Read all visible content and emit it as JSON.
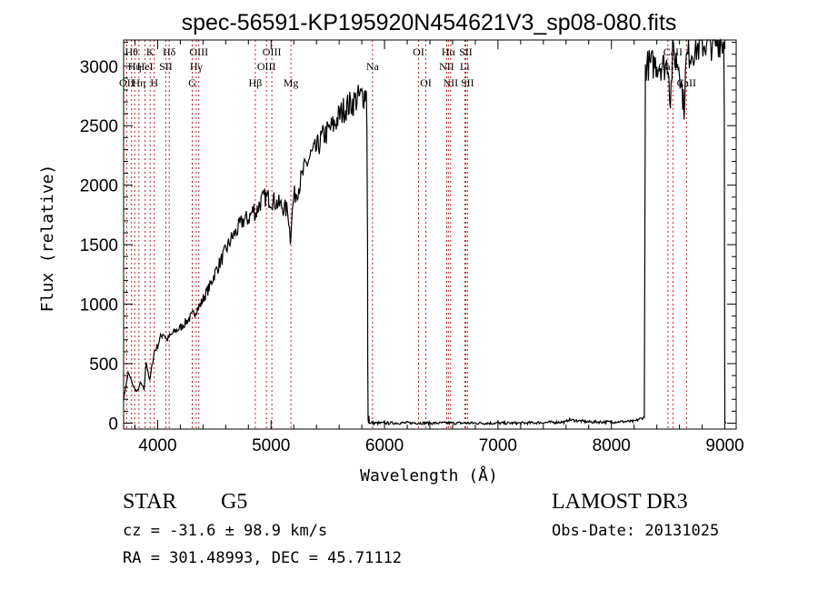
{
  "chart_data": {
    "type": "line",
    "title": "spec-56591-KP195920N454621V3_sp08-080.fits",
    "xlabel": "Wavelength (Å)",
    "ylabel": "Flux (relative)",
    "xlim": [
      3700,
      9100
    ],
    "ylim": [
      -50,
      3220
    ],
    "xticks": [
      4000,
      5000,
      6000,
      7000,
      8000,
      9000
    ],
    "yticks": [
      0,
      500,
      1000,
      1500,
      2000,
      2500,
      3000
    ],
    "grid": false,
    "series": [
      {
        "color": "#000000",
        "x": [
          3700,
          3740,
          3760,
          3790,
          3820,
          3850,
          3880,
          3900,
          3930,
          3950,
          3970,
          4000,
          4020,
          4050,
          4080,
          4100,
          4150,
          4200,
          4250,
          4300,
          4340,
          4380,
          4420,
          4460,
          4500,
          4550,
          4600,
          4650,
          4700,
          4750,
          4800,
          4850,
          4861,
          4900,
          4950,
          5000,
          5050,
          5100,
          5150,
          5170,
          5180,
          5200,
          5250,
          5300,
          5350,
          5400,
          5450,
          5500,
          5550,
          5600,
          5650,
          5700,
          5750,
          5800,
          5840,
          5845,
          5850,
          5852,
          5855,
          5858,
          5860,
          5863,
          5866,
          5870,
          5880,
          5890,
          5900,
          6000,
          6200,
          6400,
          6600,
          6800,
          7000,
          7200,
          7400,
          7600,
          7620,
          7800,
          8000,
          8200,
          8290,
          8295,
          8300,
          8320,
          8400,
          8480,
          8500,
          8520,
          8540,
          8560,
          8600,
          8640,
          8660,
          8680,
          8700,
          8750,
          8800,
          8850,
          8900,
          8950,
          8990,
          8995,
          9000,
          9010
        ],
        "y": [
          200,
          420,
          380,
          300,
          260,
          340,
          280,
          520,
          350,
          480,
          600,
          650,
          710,
          760,
          700,
          720,
          770,
          800,
          850,
          900,
          950,
          1000,
          1080,
          1150,
          1250,
          1350,
          1450,
          1550,
          1620,
          1700,
          1720,
          1800,
          1750,
          1850,
          1900,
          1880,
          1850,
          1820,
          1780,
          1550,
          1700,
          1900,
          2000,
          2150,
          2250,
          2300,
          2400,
          2450,
          2500,
          2580,
          2650,
          2680,
          2720,
          2750,
          2780,
          2450,
          1500,
          500,
          30,
          5,
          0,
          60,
          0,
          5,
          0,
          5,
          0,
          0,
          2,
          0,
          1,
          0,
          0,
          0,
          5,
          10,
          30,
          10,
          10,
          15,
          50,
          1500,
          3000,
          3010,
          3020,
          3000,
          3050,
          2700,
          3100,
          3080,
          3000,
          2650,
          3050,
          3100,
          3120,
          3150,
          3180,
          3200,
          3180,
          3220,
          3200,
          2600,
          10,
          0
        ]
      }
    ],
    "lines": [
      {
        "wave": 3727,
        "label": "OII",
        "row": 2
      },
      {
        "wave": 3770,
        "label": "Hθ",
        "row": 0
      },
      {
        "wave": 3798,
        "label": "Hη",
        "row": 1
      },
      {
        "wave": 3835,
        "label": "Hη",
        "row": 2
      },
      {
        "wave": 3889,
        "label": "HeI",
        "row": 1
      },
      {
        "wave": 3934,
        "label": "K",
        "row": 0
      },
      {
        "wave": 3970,
        "label": "H",
        "row": 2
      },
      {
        "wave": 4072,
        "label": "SII",
        "row": 1
      },
      {
        "wave": 4102,
        "label": "Hδ",
        "row": 0
      },
      {
        "wave": 4305,
        "label": "G",
        "row": 2
      },
      {
        "wave": 4340,
        "label": "Hγ",
        "row": 1
      },
      {
        "wave": 4363,
        "label": "OIII",
        "row": 0
      },
      {
        "wave": 4861,
        "label": "Hβ",
        "row": 2
      },
      {
        "wave": 4959,
        "label": "OIII",
        "row": 1
      },
      {
        "wave": 5007,
        "label": "OIII",
        "row": 0
      },
      {
        "wave": 5175,
        "label": "Mg",
        "row": 2
      },
      {
        "wave": 5894,
        "label": "Na",
        "row": 1
      },
      {
        "wave": 6300,
        "label": "OI",
        "row": 0
      },
      {
        "wave": 6364,
        "label": "OI",
        "row": 2
      },
      {
        "wave": 6548,
        "label": "NII",
        "row": 1
      },
      {
        "wave": 6563,
        "label": "Hα",
        "row": 0
      },
      {
        "wave": 6583,
        "label": "NII",
        "row": 2
      },
      {
        "wave": 6707,
        "label": "Li",
        "row": 1
      },
      {
        "wave": 6716,
        "label": "SII",
        "row": 0
      },
      {
        "wave": 6731,
        "label": "SII",
        "row": 2
      },
      {
        "wave": 8498,
        "label": "CaII",
        "row": 1
      },
      {
        "wave": 8542,
        "label": "CaII",
        "row": 0
      },
      {
        "wave": 8662,
        "label": "CaII",
        "row": 2
      }
    ]
  },
  "info": {
    "class_label": "STAR",
    "subclass": "G5",
    "survey": "LAMOST DR3",
    "redshift": "cz = -31.6 ± 98.9 km/s",
    "obs_date": "Obs-Date: 20131025",
    "coords": "RA = 301.48993, DEC =  45.71112"
  }
}
